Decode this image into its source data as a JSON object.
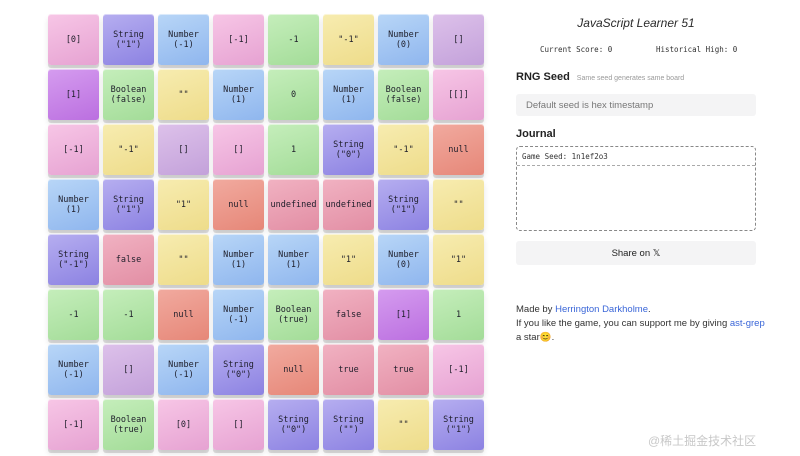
{
  "board": {
    "tiles": [
      {
        "label": "[0]",
        "color": "pink"
      },
      {
        "label": "String\n(\"1\")",
        "color": "indigo"
      },
      {
        "label": "Number\n(-1)",
        "color": "blue"
      },
      {
        "label": "[-1]",
        "color": "pink"
      },
      {
        "label": "-1",
        "color": "green"
      },
      {
        "label": "\"-1\"",
        "color": "yellow"
      },
      {
        "label": "Number\n(0)",
        "color": "blue"
      },
      {
        "label": "[]",
        "color": "mauve"
      },
      {
        "label": "[1]",
        "color": "purple"
      },
      {
        "label": "Boolean\n(false)",
        "color": "green"
      },
      {
        "label": "\"\"",
        "color": "yellow"
      },
      {
        "label": "Number\n(1)",
        "color": "blue"
      },
      {
        "label": "0",
        "color": "green"
      },
      {
        "label": "Number\n(1)",
        "color": "blue"
      },
      {
        "label": "Boolean\n(false)",
        "color": "green"
      },
      {
        "label": "[[]]",
        "color": "pink"
      },
      {
        "label": "[-1]",
        "color": "pink"
      },
      {
        "label": "\"-1\"",
        "color": "yellow"
      },
      {
        "label": "[]",
        "color": "mauve"
      },
      {
        "label": "[]",
        "color": "pink"
      },
      {
        "label": "1",
        "color": "green"
      },
      {
        "label": "String\n(\"0\")",
        "color": "indigo"
      },
      {
        "label": "\"-1\"",
        "color": "yellow"
      },
      {
        "label": "null",
        "color": "salmon"
      },
      {
        "label": "Number\n(1)",
        "color": "blue"
      },
      {
        "label": "String\n(\"1\")",
        "color": "indigo"
      },
      {
        "label": "\"1\"",
        "color": "yellow"
      },
      {
        "label": "null",
        "color": "salmon"
      },
      {
        "label": "undefined",
        "color": "rose"
      },
      {
        "label": "undefined",
        "color": "rose"
      },
      {
        "label": "String\n(\"1\")",
        "color": "indigo"
      },
      {
        "label": "\"\"",
        "color": "yellow"
      },
      {
        "label": "String\n(\"-1\")",
        "color": "indigo"
      },
      {
        "label": "false",
        "color": "rose"
      },
      {
        "label": "\"\"",
        "color": "yellow"
      },
      {
        "label": "Number\n(1)",
        "color": "blue"
      },
      {
        "label": "Number\n(1)",
        "color": "blue"
      },
      {
        "label": "\"1\"",
        "color": "yellow"
      },
      {
        "label": "Number\n(0)",
        "color": "blue"
      },
      {
        "label": "\"1\"",
        "color": "yellow"
      },
      {
        "label": "-1",
        "color": "green"
      },
      {
        "label": "-1",
        "color": "green"
      },
      {
        "label": "null",
        "color": "salmon"
      },
      {
        "label": "Number\n(-1)",
        "color": "blue"
      },
      {
        "label": "Boolean\n(true)",
        "color": "green"
      },
      {
        "label": "false",
        "color": "rose"
      },
      {
        "label": "[1]",
        "color": "purple"
      },
      {
        "label": "1",
        "color": "green"
      },
      {
        "label": "Number\n(-1)",
        "color": "blue"
      },
      {
        "label": "[]",
        "color": "mauve"
      },
      {
        "label": "Number\n(-1)",
        "color": "blue"
      },
      {
        "label": "String\n(\"0\")",
        "color": "indigo"
      },
      {
        "label": "null",
        "color": "salmon"
      },
      {
        "label": "true",
        "color": "rose"
      },
      {
        "label": "true",
        "color": "rose"
      },
      {
        "label": "[-1]",
        "color": "pink"
      },
      {
        "label": "[-1]",
        "color": "pink"
      },
      {
        "label": "Boolean\n(true)",
        "color": "green"
      },
      {
        "label": "[0]",
        "color": "pink"
      },
      {
        "label": "[]",
        "color": "pink"
      },
      {
        "label": "String\n(\"0\")",
        "color": "indigo"
      },
      {
        "label": "String\n(\"\")",
        "color": "indigo"
      },
      {
        "label": "\"\"",
        "color": "yellow"
      },
      {
        "label": "String\n(\"1\")",
        "color": "indigo"
      }
    ]
  },
  "panel": {
    "title": "JavaScript Learner 51",
    "current_score_label": "Current Score: 0",
    "historical_high_label": "Historical High: 0",
    "seed_heading": "RNG Seed",
    "seed_hint": "Same seed generates same board",
    "seed_placeholder": "Default seed is hex timestamp",
    "journal_heading": "Journal",
    "journal_entry": "Game Seed: 1n1ef2o3",
    "share_label": "Share on 𝕏",
    "credits_made_by": "Made by ",
    "credits_author": "Herrington Darkholme",
    "credits_after_author": ".",
    "credits_line2_pre": "If you like the game, you can support me by giving ",
    "credits_project": "ast-grep",
    "credits_line2_post": " a star😊."
  },
  "watermark": "@稀土掘金技术社区"
}
